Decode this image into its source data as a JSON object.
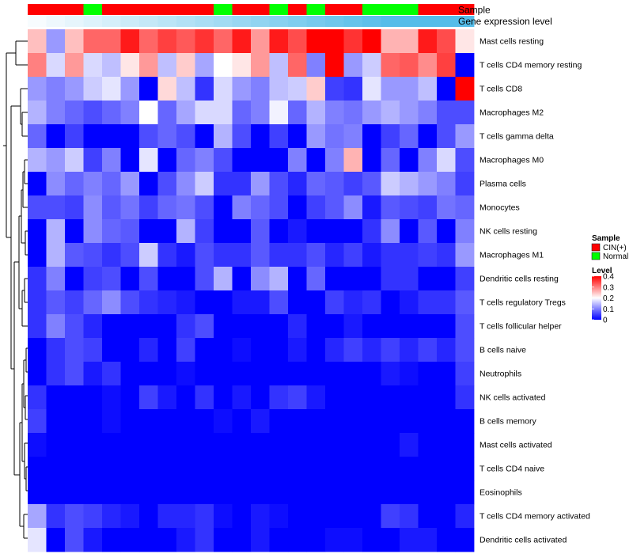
{
  "chart_data": {
    "type": "heatmap",
    "title": "",
    "annotation_labels": {
      "sample": "Sample",
      "gene": "Gene expression level"
    },
    "sample_groups": [
      "CIN",
      "CIN",
      "CIN",
      "Normal",
      "CIN",
      "CIN",
      "CIN",
      "CIN",
      "CIN",
      "CIN",
      "Normal",
      "CIN",
      "CIN",
      "Normal",
      "CIN",
      "Normal",
      "CIN",
      "CIN",
      "Normal",
      "Normal",
      "Normal",
      "CIN",
      "CIN",
      "CIN"
    ],
    "gene_levels": [
      0.05,
      0.1,
      0.15,
      0.2,
      0.25,
      0.3,
      0.35,
      0.4,
      0.45,
      0.5,
      0.55,
      0.6,
      0.65,
      0.7,
      0.75,
      0.8,
      0.85,
      0.9,
      0.95,
      1.0,
      1.0,
      1.0,
      1.0,
      1.0
    ],
    "row_labels": [
      "Mast cells resting",
      "T cells CD4 memory resting",
      "T cells CD8",
      "Macrophages M2",
      "T cells gamma delta",
      "Macrophages M0",
      "Plasma cells",
      "Monocytes",
      "NK cells resting",
      "Macrophages M1",
      "Dendritic cells resting",
      "T cells regulatory  Tregs",
      "T cells follicular helper",
      "B cells naive",
      "Neutrophils",
      "NK cells activated",
      "B cells memory",
      "Mast cells activated",
      "T cells CD4 naive",
      "Eosinophils",
      "T cells CD4 memory activated",
      "Dendritic cells activated"
    ],
    "values": [
      [
        0.25,
        0.12,
        0.25,
        0.32,
        0.32,
        0.38,
        0.32,
        0.35,
        0.33,
        0.36,
        0.32,
        0.38,
        0.28,
        0.38,
        0.34,
        0.4,
        0.4,
        0.36,
        0.4,
        0.26,
        0.26,
        0.38,
        0.34,
        0.22
      ],
      [
        0.3,
        0.17,
        0.28,
        0.17,
        0.15,
        0.22,
        0.28,
        0.15,
        0.24,
        0.13,
        0.2,
        0.22,
        0.28,
        0.15,
        0.32,
        0.1,
        0.4,
        0.12,
        0.16,
        0.32,
        0.33,
        0.29,
        0.35,
        0.0
      ],
      [
        0.12,
        0.1,
        0.12,
        0.16,
        0.18,
        0.12,
        0.0,
        0.23,
        0.15,
        0.04,
        0.17,
        0.12,
        0.1,
        0.15,
        0.16,
        0.24,
        0.05,
        0.04,
        0.18,
        0.12,
        0.12,
        0.15,
        0.0,
        0.4
      ],
      [
        0.14,
        0.1,
        0.08,
        0.06,
        0.08,
        0.1,
        0.2,
        0.08,
        0.13,
        0.17,
        0.17,
        0.08,
        0.1,
        0.19,
        0.08,
        0.14,
        0.1,
        0.09,
        0.12,
        0.14,
        0.12,
        0.1,
        0.06,
        0.06
      ],
      [
        0.08,
        0.0,
        0.05,
        0.0,
        0.0,
        0.0,
        0.06,
        0.08,
        0.06,
        0.0,
        0.14,
        0.06,
        0.0,
        0.05,
        0.0,
        0.12,
        0.09,
        0.1,
        0.0,
        0.05,
        0.08,
        0.0,
        0.06,
        0.12
      ],
      [
        0.14,
        0.12,
        0.16,
        0.05,
        0.1,
        0.0,
        0.18,
        0.0,
        0.08,
        0.1,
        0.06,
        0.0,
        0.0,
        0.0,
        0.1,
        0.0,
        0.1,
        0.26,
        0.0,
        0.08,
        0.0,
        0.1,
        0.17,
        0.06
      ],
      [
        0.0,
        0.11,
        0.08,
        0.1,
        0.08,
        0.12,
        0.0,
        0.06,
        0.11,
        0.16,
        0.04,
        0.04,
        0.12,
        0.06,
        0.03,
        0.08,
        0.07,
        0.05,
        0.07,
        0.16,
        0.14,
        0.12,
        0.1,
        0.05
      ],
      [
        0.06,
        0.06,
        0.05,
        0.11,
        0.07,
        0.09,
        0.05,
        0.08,
        0.09,
        0.06,
        0.0,
        0.1,
        0.08,
        0.06,
        0.0,
        0.05,
        0.07,
        0.11,
        0.02,
        0.07,
        0.06,
        0.05,
        0.09,
        0.08
      ],
      [
        0.0,
        0.14,
        0.0,
        0.11,
        0.08,
        0.07,
        0.0,
        0.0,
        0.14,
        0.05,
        0.0,
        0.0,
        0.07,
        0.0,
        0.02,
        0.0,
        0.0,
        0.0,
        0.04,
        0.11,
        0.0,
        0.07,
        0.0,
        0.1
      ],
      [
        0.0,
        0.14,
        0.07,
        0.06,
        0.04,
        0.06,
        0.16,
        0.04,
        0.02,
        0.06,
        0.04,
        0.04,
        0.07,
        0.04,
        0.04,
        0.06,
        0.03,
        0.05,
        0.02,
        0.04,
        0.04,
        0.05,
        0.04,
        0.12
      ],
      [
        0.04,
        0.1,
        0.0,
        0.05,
        0.06,
        0.0,
        0.06,
        0.0,
        0.0,
        0.06,
        0.14,
        0.0,
        0.11,
        0.14,
        0.0,
        0.08,
        0.0,
        0.0,
        0.0,
        0.04,
        0.04,
        0.0,
        0.0,
        0.05
      ],
      [
        0.04,
        0.07,
        0.05,
        0.08,
        0.11,
        0.06,
        0.04,
        0.03,
        0.02,
        0.0,
        0.0,
        0.02,
        0.02,
        0.06,
        0.0,
        0.0,
        0.05,
        0.03,
        0.04,
        0.0,
        0.02,
        0.04,
        0.04,
        0.07
      ],
      [
        0.04,
        0.1,
        0.06,
        0.03,
        0.0,
        0.0,
        0.0,
        0.0,
        0.04,
        0.06,
        0.0,
        0.0,
        0.0,
        0.0,
        0.03,
        0.0,
        0.0,
        0.02,
        0.0,
        0.0,
        0.0,
        0.0,
        0.0,
        0.06
      ],
      [
        0.0,
        0.04,
        0.06,
        0.05,
        0.0,
        0.0,
        0.03,
        0.0,
        0.05,
        0.0,
        0.0,
        0.01,
        0.0,
        0.0,
        0.02,
        0.0,
        0.03,
        0.05,
        0.03,
        0.05,
        0.03,
        0.05,
        0.03,
        0.06
      ],
      [
        0.0,
        0.04,
        0.06,
        0.02,
        0.04,
        0.0,
        0.0,
        0.0,
        0.01,
        0.0,
        0.0,
        0.0,
        0.0,
        0.0,
        0.0,
        0.0,
        0.0,
        0.0,
        0.0,
        0.02,
        0.01,
        0.0,
        0.0,
        0.05
      ],
      [
        0.04,
        0.0,
        0.0,
        0.0,
        0.01,
        0.0,
        0.05,
        0.02,
        0.0,
        0.04,
        0.0,
        0.02,
        0.0,
        0.04,
        0.05,
        0.02,
        0.0,
        0.0,
        0.0,
        0.0,
        0.0,
        0.0,
        0.0,
        0.04
      ],
      [
        0.05,
        0.0,
        0.0,
        0.0,
        0.01,
        0.0,
        0.0,
        0.0,
        0.0,
        0.0,
        0.01,
        0.0,
        0.02,
        0.0,
        0.0,
        0.0,
        0.0,
        0.0,
        0.0,
        0.0,
        0.0,
        0.0,
        0.0,
        0.0
      ],
      [
        0.01,
        0.0,
        0.0,
        0.0,
        0.0,
        0.0,
        0.0,
        0.0,
        0.0,
        0.0,
        0.0,
        0.0,
        0.0,
        0.0,
        0.0,
        0.0,
        0.0,
        0.0,
        0.0,
        0.0,
        0.02,
        0.0,
        0.0,
        0.0
      ],
      [
        0.0,
        0.0,
        0.0,
        0.0,
        0.0,
        0.0,
        0.0,
        0.0,
        0.0,
        0.0,
        0.0,
        0.0,
        0.0,
        0.0,
        0.0,
        0.0,
        0.0,
        0.0,
        0.0,
        0.0,
        0.0,
        0.0,
        0.0,
        0.0
      ],
      [
        0.0,
        0.0,
        0.0,
        0.0,
        0.0,
        0.0,
        0.0,
        0.0,
        0.0,
        0.0,
        0.0,
        0.0,
        0.0,
        0.0,
        0.0,
        0.0,
        0.0,
        0.0,
        0.0,
        0.0,
        0.0,
        0.0,
        0.0,
        0.0
      ],
      [
        0.13,
        0.04,
        0.06,
        0.05,
        0.03,
        0.02,
        0.0,
        0.03,
        0.03,
        0.04,
        0.01,
        0.0,
        0.02,
        0.01,
        0.0,
        0.0,
        0.0,
        0.0,
        0.0,
        0.05,
        0.04,
        0.0,
        0.0,
        0.03
      ],
      [
        0.18,
        0.0,
        0.06,
        0.02,
        0.0,
        0.0,
        0.0,
        0.0,
        0.02,
        0.04,
        0.0,
        0.0,
        0.02,
        0.0,
        0.0,
        0.0,
        0.01,
        0.01,
        0.0,
        0.0,
        0.02,
        0.02,
        0.0,
        0.0
      ]
    ],
    "legend": {
      "sample": {
        "title": "Sample",
        "entries": [
          {
            "label": "CIN(+)",
            "color": "#ff0000"
          },
          {
            "label": "Normal",
            "color": "#00ff00"
          }
        ]
      },
      "level": {
        "title": "Level",
        "ticks": [
          "0.4",
          "0.3",
          "0.2",
          "0.1",
          "0"
        ],
        "tick_values": [
          0.4,
          0.3,
          0.2,
          0.1,
          0
        ],
        "range": [
          0,
          0.4
        ]
      }
    },
    "colors": {
      "low": "#0000ff",
      "mid": "#ffffff",
      "high": "#ff0000",
      "cin": "#ff0000",
      "normal": "#00ff00",
      "gene_low": "#ffffff",
      "gene_high": "#55bde9"
    }
  }
}
